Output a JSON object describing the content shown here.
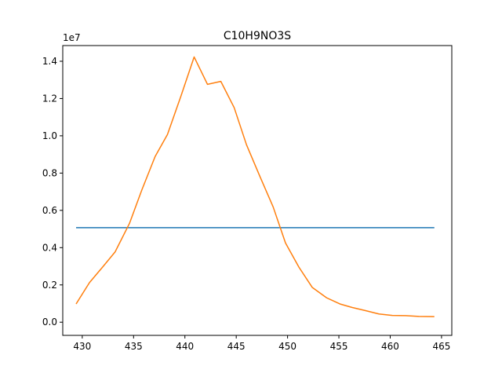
{
  "chart_data": {
    "type": "line",
    "title": "C10H9NO3S",
    "xlabel": "",
    "ylabel": "",
    "y_offset_label": "1e7",
    "xlim": [
      428.1,
      466.0
    ],
    "ylim": [
      -0.0707,
      1.4842
    ],
    "y_scale_factor": 10000000,
    "xticks": [
      430,
      435,
      440,
      445,
      450,
      455,
      460,
      465
    ],
    "xtick_labels": [
      "430",
      "435",
      "440",
      "445",
      "450",
      "455",
      "460",
      "465"
    ],
    "yticks": [
      0.0,
      0.2,
      0.4,
      0.6,
      0.8,
      1.0,
      1.2,
      1.4
    ],
    "ytick_labels": [
      "0.0",
      "0.2",
      "0.4",
      "0.6",
      "0.8",
      "1.0",
      "1.2",
      "1.4"
    ],
    "grid": false,
    "legend": "none",
    "series": [
      {
        "color": "#1f77b4",
        "x": [
          429.4,
          464.3
        ],
        "y": [
          0.507,
          0.507
        ]
      },
      {
        "color": "#ff7f0e",
        "x": [
          429.4,
          430.7,
          432.0,
          433.2,
          434.6,
          435.8,
          437.1,
          438.3,
          439.6,
          440.9,
          442.2,
          443.5,
          444.8,
          446.0,
          447.3,
          448.6,
          449.8,
          451.1,
          452.4,
          453.8,
          455.1,
          456.3,
          457.6,
          458.9,
          460.2,
          461.5,
          462.8,
          464.3
        ],
        "y": [
          0.098,
          0.212,
          0.297,
          0.377,
          0.53,
          0.709,
          0.889,
          1.007,
          1.211,
          1.423,
          1.276,
          1.292,
          1.151,
          0.952,
          0.783,
          0.618,
          0.425,
          0.296,
          0.187,
          0.131,
          0.098,
          0.079,
          0.062,
          0.044,
          0.036,
          0.035,
          0.031,
          0.03
        ]
      }
    ]
  }
}
